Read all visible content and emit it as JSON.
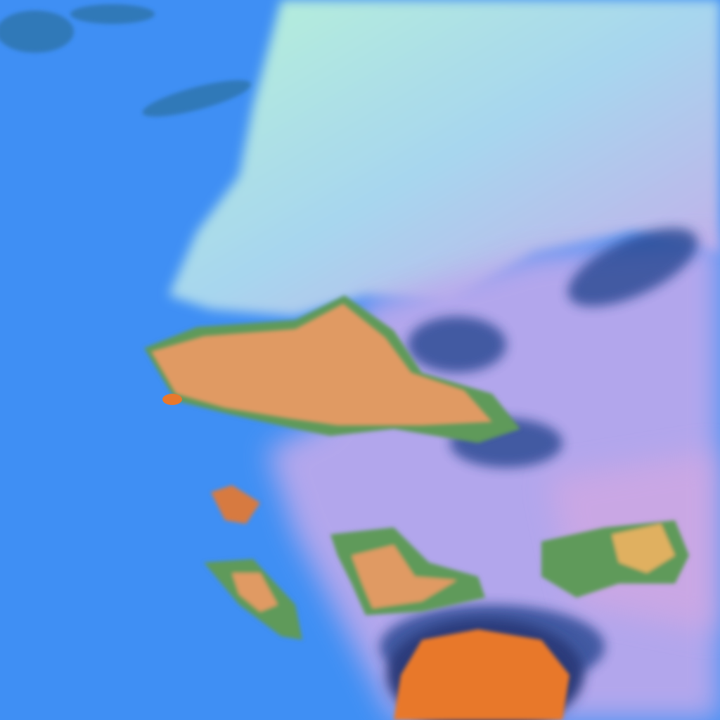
{
  "colors": {
    "ocean": "#3f8ff4",
    "land_haze": "#9fd8e8",
    "land_light": "#b7f2d8",
    "cloud_lavender": "#b9a8ec",
    "cloud_pink": "#d9a8e0",
    "warm_cloud": "#e09a64",
    "orange_core": "#e8782c",
    "shadow": "#1d3f8a",
    "green_edge": "#5f9a5a"
  }
}
